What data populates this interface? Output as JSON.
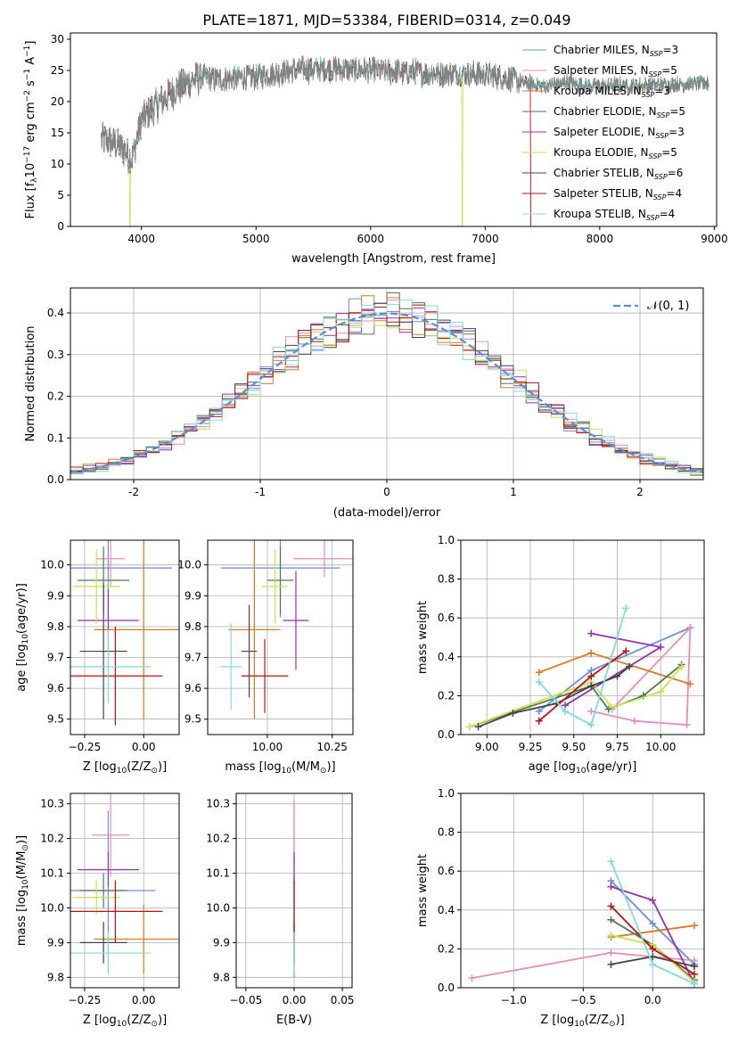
{
  "figure": {
    "title": "PLATE=1871, MJD=53384, FIBERID=0314, z=0.049"
  },
  "colors": [
    "#6a8fdc",
    "#e88cbd",
    "#d97b22",
    "#4f7a4f",
    "#9a2fb0",
    "#c9e04f",
    "#444444",
    "#b81212",
    "#7fdcdc"
  ],
  "models": [
    {
      "label": "Chabrier MILES, N",
      "nssp": "=3"
    },
    {
      "label": "Salpeter MILES, N",
      "nssp": "=5"
    },
    {
      "label": "Kroupa MILES, N",
      "nssp": "=3"
    },
    {
      "label": "Chabrier ELODIE, N",
      "nssp": "=5"
    },
    {
      "label": "Salpeter ELODIE, N",
      "nssp": "=3"
    },
    {
      "label": "Kroupa ELODIE, N",
      "nssp": "=5"
    },
    {
      "label": "Chabrier STELIB, N",
      "nssp": "=6"
    },
    {
      "label": "Salpeter STELIB, N",
      "nssp": "=4"
    },
    {
      "label": "Kroupa STELIB, N",
      "nssp": "=4"
    }
  ],
  "nssp_sub": "SSP",
  "chart_data": [
    {
      "id": "spectrum",
      "type": "line",
      "xlabel": "wavelength [Angstrom, rest frame]",
      "ylabel": "Flux [f",
      "ylabel_parts": {
        "a": "Flux [f",
        "sub": "λ",
        "b": "10",
        "sup1": "−17",
        "c": " erg cm",
        "sup2": "−2",
        "d": " s",
        "sup3": "−1",
        "e": " A",
        "sup4": "−1",
        "f": "]"
      },
      "xlim": [
        3380,
        9020
      ],
      "ylim": [
        0,
        31
      ],
      "xticks": [
        4000,
        5000,
        6000,
        7000,
        8000,
        9000
      ],
      "yticks": [
        0,
        5,
        10,
        15,
        20,
        25,
        30
      ],
      "continuum_nodes": [
        [
          3650,
          14
        ],
        [
          3800,
          13
        ],
        [
          3920,
          11
        ],
        [
          4000,
          17
        ],
        [
          4100,
          19
        ],
        [
          4300,
          22
        ],
        [
          4500,
          24
        ],
        [
          4700,
          23.5
        ],
        [
          5000,
          24
        ],
        [
          5300,
          25
        ],
        [
          5600,
          25.3
        ],
        [
          6000,
          25
        ],
        [
          6500,
          24.5
        ],
        [
          6800,
          24.5
        ],
        [
          7100,
          24.2
        ],
        [
          7300,
          23.2
        ],
        [
          7500,
          22.5
        ],
        [
          7700,
          23
        ],
        [
          8000,
          22.5
        ],
        [
          8300,
          22.5
        ],
        [
          8600,
          22.7
        ],
        [
          8900,
          23
        ]
      ],
      "range": [
        3650,
        8950
      ],
      "model_cutoffs": [
        {
          "at": 3900,
          "models": [
            5
          ]
        },
        {
          "at": 6800,
          "models": [
            5
          ]
        },
        {
          "at": 7400,
          "models": [
            2,
            7
          ]
        }
      ]
    },
    {
      "id": "residuals",
      "type": "histogram",
      "xlabel": "(data-model)/error",
      "ylabel": "Normed distribution",
      "xlim": [
        -2.5,
        2.5
      ],
      "ylim": [
        0,
        0.46
      ],
      "xticks": [
        -2,
        -1,
        0,
        1,
        2
      ],
      "yticks": [
        0,
        0.1,
        0.2,
        0.3,
        0.4
      ],
      "bins": 50,
      "reference": {
        "label": "𝒩(0, 1)",
        "mean": 0,
        "sigma": 1
      }
    },
    {
      "id": "age-vs-Z",
      "type": "scatter",
      "xlabel": "Z [log",
      "xlabel_parts": {
        "a": "Z [log",
        "sub": "10",
        "b": "(Z/Z",
        "sub2": "⊙",
        "c": ")]"
      },
      "ylabel_parts": {
        "a": "age  [log",
        "sub": "10",
        "b": "(age/yr)]"
      },
      "xlim": [
        -0.31,
        0.15
      ],
      "ylim": [
        9.45,
        10.08
      ],
      "xticks": [
        -0.25,
        0,
        0.2
      ],
      "xtick_labels": [
        "−0.25",
        "0.00"
      ],
      "yticks": [
        9.5,
        9.6,
        9.7,
        9.8,
        9.9,
        10.0
      ],
      "points": [
        {
          "x": -0.15,
          "y": 9.99,
          "xerr": 0.27,
          "yerr": 0.16
        },
        {
          "x": -0.14,
          "y": 10.02,
          "xerr": 0.06,
          "yerr": 0.09
        },
        {
          "x": 0.0,
          "y": 9.79,
          "xerr": 0.21,
          "yerr": 0.29
        },
        {
          "x": -0.17,
          "y": 9.95,
          "xerr": 0.11,
          "yerr": 0.11
        },
        {
          "x": -0.15,
          "y": 9.82,
          "xerr": 0.13,
          "yerr": 0.1
        },
        {
          "x": -0.2,
          "y": 9.93,
          "xerr": 0.1,
          "yerr": 0.12
        },
        {
          "x": -0.17,
          "y": 9.72,
          "xerr": 0.1,
          "yerr": 0.22
        },
        {
          "x": -0.12,
          "y": 9.64,
          "xerr": 0.2,
          "yerr": 0.16
        },
        {
          "x": -0.15,
          "y": 9.67,
          "xerr": 0.18,
          "yerr": 0.12
        }
      ]
    },
    {
      "id": "age-vs-mass",
      "type": "scatter",
      "xlabel_parts": {
        "a": "mass [log",
        "sub": "10",
        "b": "(M/M",
        "sub2": "⊙",
        "c": ")]"
      },
      "xlim": [
        9.77,
        10.33
      ],
      "ylim": [
        9.45,
        10.08
      ],
      "xticks": [
        10.0,
        10.25
      ],
      "xtick_labels": [
        "10.00",
        "10.25"
      ],
      "yticks": [
        9.5,
        9.6,
        9.7,
        9.8,
        9.9,
        10.0
      ],
      "points": [
        {
          "x": 10.05,
          "y": 9.99,
          "xerr": 0.23,
          "yerr": 0.16
        },
        {
          "x": 10.22,
          "y": 10.02,
          "xerr": 0.12,
          "yerr": 0.06
        },
        {
          "x": 9.95,
          "y": 9.79,
          "xerr": 0.1,
          "yerr": 0.29
        },
        {
          "x": 10.05,
          "y": 9.95,
          "xerr": 0.05,
          "yerr": 0.11
        },
        {
          "x": 10.11,
          "y": 9.82,
          "xerr": 0.05,
          "yerr": 0.16
        },
        {
          "x": 10.03,
          "y": 9.93,
          "xerr": 0.05,
          "yerr": 0.12
        },
        {
          "x": 9.93,
          "y": 9.72,
          "xerr": 0.03,
          "yerr": 0.15
        },
        {
          "x": 9.99,
          "y": 9.64,
          "xerr": 0.09,
          "yerr": 0.12
        },
        {
          "x": 9.86,
          "y": 9.67,
          "xerr": 0.04,
          "yerr": 0.14
        }
      ]
    },
    {
      "id": "weight-vs-age",
      "type": "line",
      "xlabel_parts": {
        "a": "age  [log",
        "sub": "10",
        "b": "(age/yr)]"
      },
      "ylabel": "mass weight",
      "xlim": [
        8.85,
        10.25
      ],
      "ylim": [
        0,
        1
      ],
      "xticks": [
        9.0,
        9.25,
        9.5,
        9.75,
        10.0
      ],
      "xtick_labels": [
        "9.00",
        "9.25",
        "9.50",
        "9.75",
        "10.00"
      ],
      "yticks": [
        0,
        0.2,
        0.4,
        0.6,
        0.8,
        1.0
      ],
      "ytick_labels": [
        "0.0",
        "0.2",
        "0.4",
        "0.6",
        "0.8",
        "1.0"
      ],
      "series": [
        {
          "x": [
            9.3,
            9.6,
            10.17
          ],
          "y": [
            0.12,
            0.33,
            0.55
          ]
        },
        {
          "x": [
            9.6,
            9.85,
            10.15,
            10.17,
            9.72
          ],
          "y": [
            0.12,
            0.07,
            0.05,
            0.55,
            0.13
          ]
        },
        {
          "x": [
            9.3,
            9.6,
            10.17
          ],
          "y": [
            0.32,
            0.42,
            0.26
          ]
        },
        {
          "x": [
            8.9,
            9.6,
            9.7,
            9.9,
            10.12
          ],
          "y": [
            0.04,
            0.25,
            0.13,
            0.2,
            0.36
          ]
        },
        {
          "x": [
            9.6,
            10.0,
            9.45
          ],
          "y": [
            0.52,
            0.45,
            0.15
          ]
        },
        {
          "x": [
            8.9,
            9.6,
            9.72,
            10.0,
            10.12
          ],
          "y": [
            0.04,
            0.27,
            0.14,
            0.22,
            0.35
          ]
        },
        {
          "x": [
            8.95,
            9.15,
            9.4,
            9.6,
            9.75,
            9.82
          ],
          "y": [
            0.04,
            0.11,
            0.16,
            0.25,
            0.3,
            0.35
          ]
        },
        {
          "x": [
            9.3,
            9.6,
            9.8
          ],
          "y": [
            0.07,
            0.3,
            0.43
          ]
        },
        {
          "x": [
            9.3,
            9.45,
            9.6,
            9.8
          ],
          "y": [
            0.27,
            0.12,
            0.05,
            0.65
          ]
        }
      ]
    },
    {
      "id": "mass-vs-Z",
      "type": "scatter",
      "xlabel_parts": {
        "a": "Z [log",
        "sub": "10",
        "b": "(Z/Z",
        "sub2": "⊙",
        "c": ")]"
      },
      "ylabel_parts": {
        "a": "mass [log",
        "sub": "10",
        "b": "(M/M",
        "sub2": "⊙",
        "c": ")]"
      },
      "xlim": [
        -0.31,
        0.15
      ],
      "ylim": [
        9.77,
        10.33
      ],
      "xticks": [
        -0.25,
        0,
        0.2
      ],
      "xtick_labels": [
        "−0.25",
        "0.00"
      ],
      "yticks": [
        9.8,
        9.9,
        10.0,
        10.1,
        10.2,
        10.3
      ],
      "points": [
        {
          "x": -0.15,
          "y": 10.05,
          "xerr": 0.2,
          "yerr": 0.23
        },
        {
          "x": -0.14,
          "y": 10.21,
          "xerr": 0.08,
          "yerr": 0.12
        },
        {
          "x": 0.0,
          "y": 9.91,
          "xerr": 0.21,
          "yerr": 0.1
        },
        {
          "x": -0.17,
          "y": 10.05,
          "xerr": 0.1,
          "yerr": 0.05
        },
        {
          "x": -0.15,
          "y": 10.11,
          "xerr": 0.13,
          "yerr": 0.05
        },
        {
          "x": -0.2,
          "y": 10.03,
          "xerr": 0.1,
          "yerr": 0.05
        },
        {
          "x": -0.17,
          "y": 9.9,
          "xerr": 0.1,
          "yerr": 0.06
        },
        {
          "x": -0.12,
          "y": 9.99,
          "xerr": 0.2,
          "yerr": 0.09
        },
        {
          "x": -0.15,
          "y": 9.87,
          "xerr": 0.18,
          "yerr": 0.06
        }
      ]
    },
    {
      "id": "mass-vs-ebv",
      "type": "scatter",
      "xlabel": "E(B-V)",
      "xlim": [
        -0.06,
        0.06
      ],
      "ylim": [
        9.77,
        10.33
      ],
      "xticks": [
        -0.05,
        0,
        0.05
      ],
      "xtick_labels": [
        "−0.05",
        "0.00",
        "0.05"
      ],
      "yticks": [
        9.8,
        9.9,
        10.0,
        10.1,
        10.2,
        10.3
      ],
      "points": [
        {
          "x": 0,
          "y": 10.05,
          "yerr": 0.25
        },
        {
          "x": 0,
          "y": 10.21,
          "yerr": 0.1
        },
        {
          "x": 0,
          "y": 9.91,
          "yerr": 0.08
        },
        {
          "x": 0,
          "y": 10.05,
          "yerr": 0.05
        },
        {
          "x": 0,
          "y": 10.11,
          "yerr": 0.05
        },
        {
          "x": 0,
          "y": 10.03,
          "yerr": 0.05
        },
        {
          "x": 0,
          "y": 9.9,
          "yerr": 0.06
        },
        {
          "x": 0,
          "y": 9.99,
          "yerr": 0.09
        },
        {
          "x": 0,
          "y": 9.87,
          "yerr": 0.06
        }
      ]
    },
    {
      "id": "weight-vs-Z",
      "type": "line",
      "xlabel_parts": {
        "a": "Z [log",
        "sub": "10",
        "b": "(Z/Z",
        "sub2": "⊙",
        "c": ")]"
      },
      "ylabel": "mass weight",
      "xlim": [
        -1.38,
        0.37
      ],
      "ylim": [
        0,
        1
      ],
      "xticks": [
        -1.0,
        -0.5,
        0.0
      ],
      "xtick_labels": [
        "−1.0",
        "−0.5",
        "0.0"
      ],
      "yticks": [
        0,
        0.2,
        0.4,
        0.6,
        0.8,
        1.0
      ],
      "ytick_labels": [
        "0.0",
        "0.2",
        "0.4",
        "0.6",
        "0.8",
        "1.0"
      ],
      "series": [
        {
          "x": [
            -0.3,
            0.0,
            0.3
          ],
          "y": [
            0.55,
            0.33,
            0.12
          ]
        },
        {
          "x": [
            -1.3,
            -0.3,
            0.3
          ],
          "y": [
            0.05,
            0.18,
            0.14
          ]
        },
        {
          "x": [
            -0.3,
            0.3
          ],
          "y": [
            0.26,
            0.32
          ]
        },
        {
          "x": [
            -0.3,
            0.0,
            0.3
          ],
          "y": [
            0.35,
            0.22,
            0.04
          ]
        },
        {
          "x": [
            -0.3,
            0.0,
            0.3
          ],
          "y": [
            0.52,
            0.45,
            0.02
          ]
        },
        {
          "x": [
            -0.3,
            0.0,
            0.3
          ],
          "y": [
            0.27,
            0.22,
            0.03
          ]
        },
        {
          "x": [
            -0.3,
            0.0,
            0.3
          ],
          "y": [
            0.12,
            0.16,
            0.11
          ]
        },
        {
          "x": [
            -0.3,
            0.0,
            0.3
          ],
          "y": [
            0.42,
            0.2,
            0.07
          ]
        },
        {
          "x": [
            -0.3,
            0.0,
            0.3
          ],
          "y": [
            0.65,
            0.12,
            0.02
          ]
        }
      ]
    }
  ]
}
